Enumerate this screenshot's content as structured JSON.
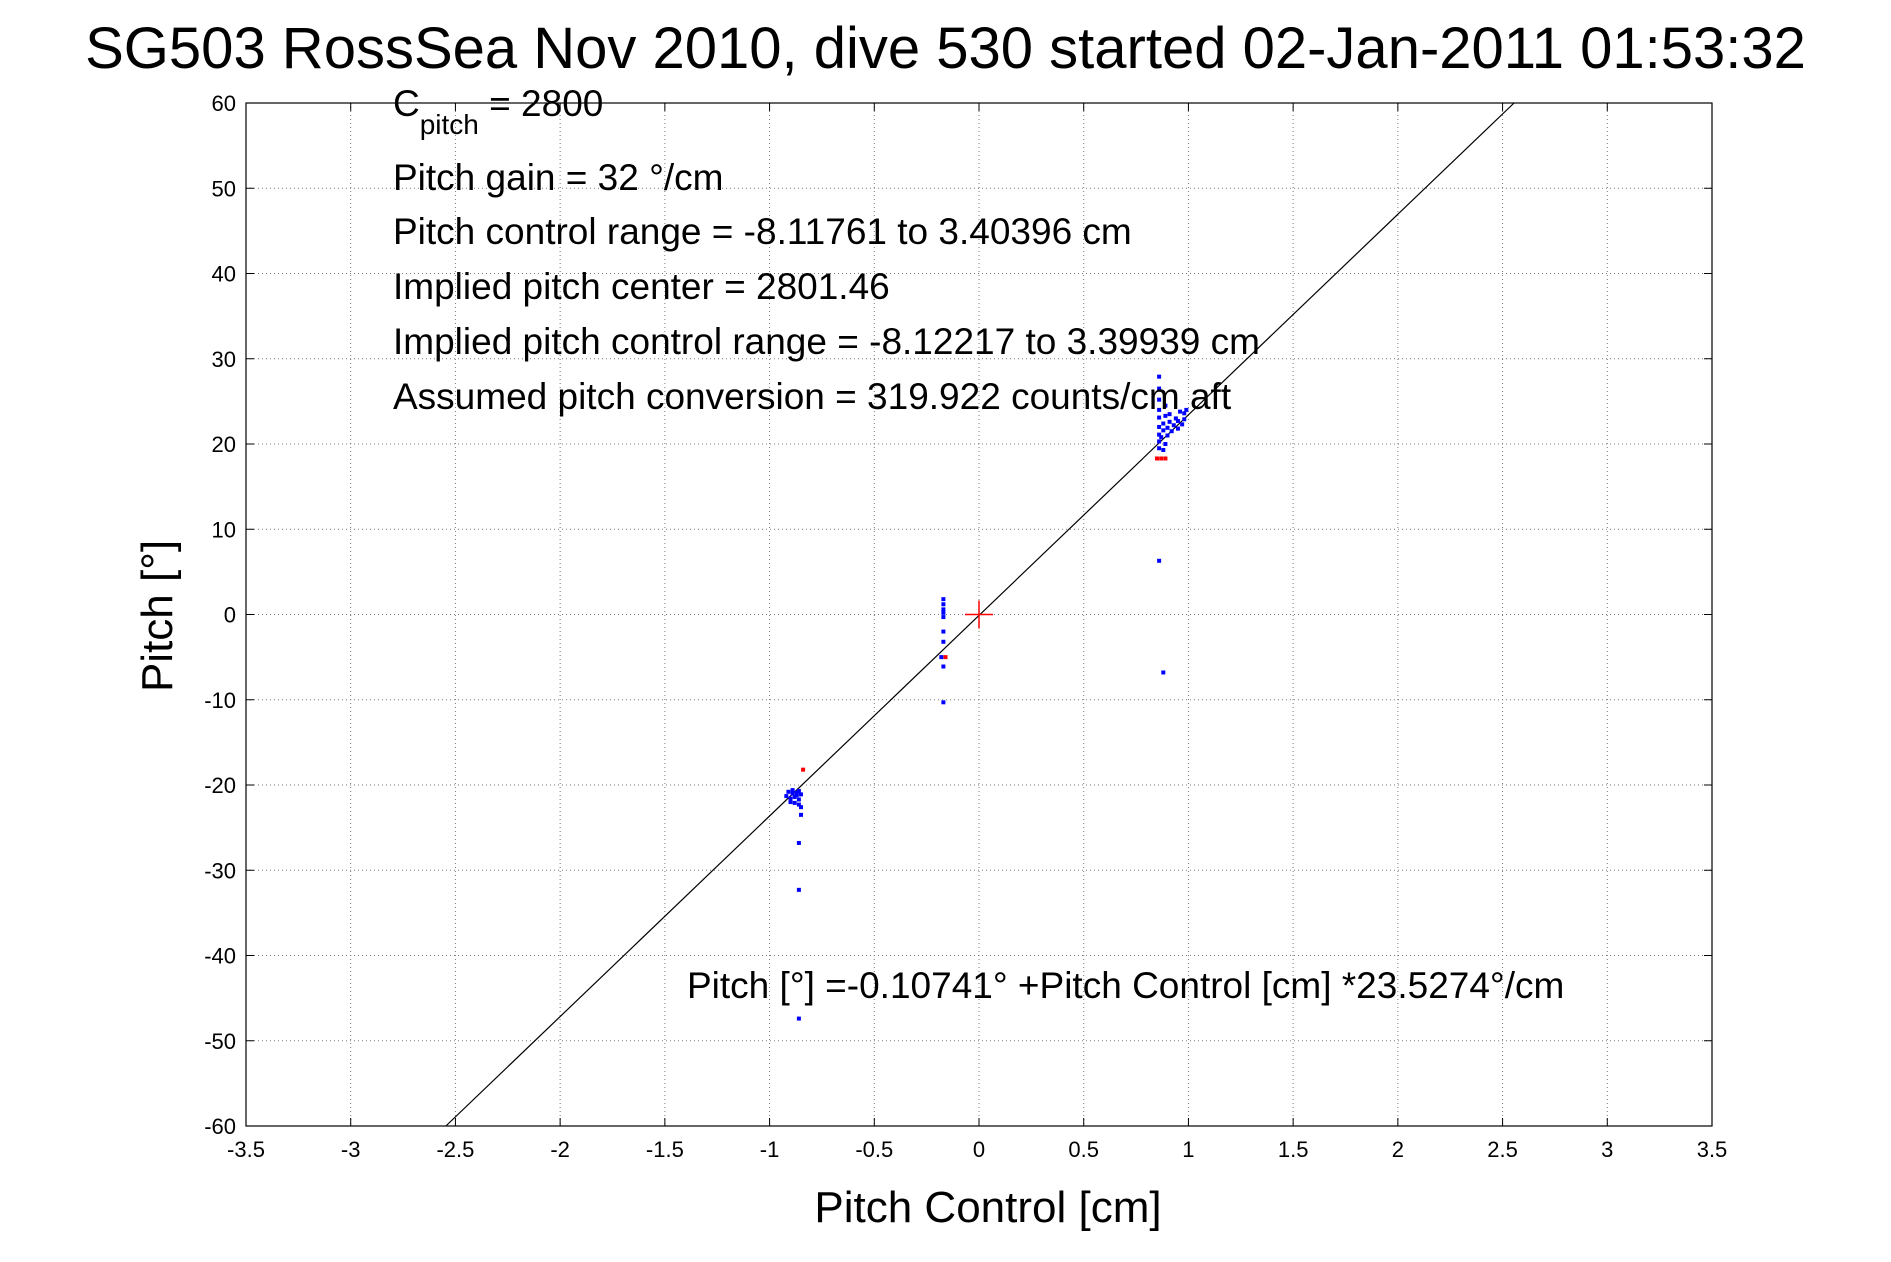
{
  "chart_data": {
    "type": "scatter",
    "title": "SG503 RossSea Nov 2010, dive 530 started 02-Jan-2011 01:53:32",
    "xlabel": "Pitch Control [cm]",
    "ylabel": "Pitch [°]",
    "xlim": [
      -3.5,
      3.5
    ],
    "ylim": [
      -60,
      60
    ],
    "grid": true,
    "x_ticks": [
      -3.5,
      -3,
      -2.5,
      -2,
      -1.5,
      -1,
      -0.5,
      0,
      0.5,
      1,
      1.5,
      2,
      2.5,
      3,
      3.5
    ],
    "y_ticks": [
      -60,
      -50,
      -40,
      -30,
      -20,
      -10,
      0,
      10,
      20,
      30,
      40,
      50,
      60
    ],
    "annotations": {
      "c_pitch": {
        "base": "C",
        "sub": "pitch",
        "rest": " = 2800"
      },
      "lines": [
        "Pitch gain = 32 °/cm",
        "Pitch control range = -8.11761 to 3.40396 cm",
        "Implied pitch center = 2801.46",
        "Implied pitch control range = -8.12217 to 3.39939 cm",
        "Assumed pitch conversion = 319.922 counts/cm aft"
      ],
      "fit_equation": "Pitch [°] =-0.10741° +Pitch Control [cm] *23.5274°/cm"
    },
    "fit_line": {
      "intercept": -0.10741,
      "slope": 23.5274
    },
    "origin_marker": {
      "x": 0,
      "y": 0,
      "color": "#ff0000"
    },
    "series": [
      {
        "color": "#0000ff",
        "points": [
          [
            -0.92,
            -21.3
          ],
          [
            -0.91,
            -20.8
          ],
          [
            -0.9,
            -21.6
          ],
          [
            -0.9,
            -22.0
          ],
          [
            -0.89,
            -21.0
          ],
          [
            -0.89,
            -20.6
          ],
          [
            -0.88,
            -21.4
          ],
          [
            -0.88,
            -22.1
          ],
          [
            -0.87,
            -20.9
          ],
          [
            -0.87,
            -21.2
          ],
          [
            -0.86,
            -21.7
          ],
          [
            -0.86,
            -22.3
          ],
          [
            -0.86,
            -20.7
          ],
          [
            -0.85,
            -21.1
          ],
          [
            -0.85,
            -22.6
          ],
          [
            -0.85,
            -23.5
          ],
          [
            -0.86,
            -26.8
          ],
          [
            -0.86,
            -32.3
          ],
          [
            -0.86,
            -47.4
          ],
          [
            -0.17,
            1.8
          ],
          [
            -0.17,
            1.2
          ],
          [
            -0.17,
            0.6
          ],
          [
            -0.17,
            0.2
          ],
          [
            -0.17,
            -0.3
          ],
          [
            -0.17,
            -2.0
          ],
          [
            -0.17,
            -3.2
          ],
          [
            -0.18,
            -5.0
          ],
          [
            -0.17,
            -6.1
          ],
          [
            -0.17,
            -10.3
          ],
          [
            0.86,
            27.9
          ],
          [
            0.86,
            26.5
          ],
          [
            0.86,
            25.2
          ],
          [
            0.86,
            24.0
          ],
          [
            0.86,
            23.1
          ],
          [
            0.86,
            22.0
          ],
          [
            0.86,
            21.1
          ],
          [
            0.86,
            20.3
          ],
          [
            0.86,
            19.5
          ],
          [
            0.87,
            20.8
          ],
          [
            0.88,
            21.6
          ],
          [
            0.88,
            22.4
          ],
          [
            0.88,
            19.3
          ],
          [
            0.89,
            20.0
          ],
          [
            0.89,
            23.3
          ],
          [
            0.89,
            24.5
          ],
          [
            0.9,
            21.0
          ],
          [
            0.9,
            21.9
          ],
          [
            0.91,
            22.6
          ],
          [
            0.91,
            23.5
          ],
          [
            0.92,
            21.5
          ],
          [
            0.93,
            22.2
          ],
          [
            0.94,
            23.0
          ],
          [
            0.95,
            21.8
          ],
          [
            0.95,
            22.7
          ],
          [
            0.96,
            23.8
          ],
          [
            0.97,
            22.3
          ],
          [
            0.98,
            22.9
          ],
          [
            0.98,
            23.6
          ],
          [
            0.99,
            24.0
          ],
          [
            0.86,
            6.3
          ],
          [
            0.88,
            -6.8
          ]
        ]
      },
      {
        "color": "#ff0000",
        "points": [
          [
            -0.84,
            -18.2
          ],
          [
            -0.16,
            -5.0
          ],
          [
            0.85,
            18.3
          ],
          [
            0.87,
            18.3
          ],
          [
            0.89,
            18.3
          ]
        ]
      }
    ]
  }
}
